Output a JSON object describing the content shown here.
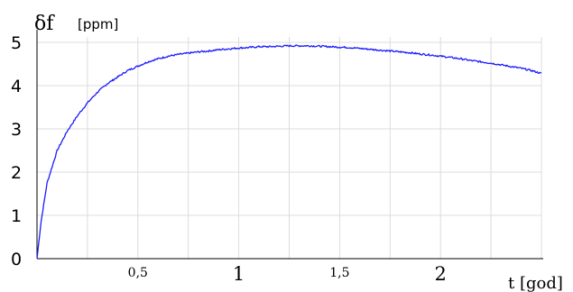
{
  "chart_data": {
    "type": "line",
    "ylabel": "δf",
    "ylabel_unit": "[ppm]",
    "xlabel": "t [god]",
    "xlim": [
      0,
      2.5
    ],
    "ylim": [
      0,
      5
    ],
    "grid": true,
    "colors": {
      "line": "#1a1aff",
      "grid": "#dcdcdc",
      "axis": "#000000"
    },
    "y_ticks": [
      {
        "value": 0,
        "label": "0"
      },
      {
        "value": 1,
        "label": "1"
      },
      {
        "value": 2,
        "label": "2"
      },
      {
        "value": 3,
        "label": "3"
      },
      {
        "value": 4,
        "label": "4"
      },
      {
        "value": 5,
        "label": "5"
      }
    ],
    "x_ticks": [
      {
        "value": 0.5,
        "label": "0,5",
        "style": "minor"
      },
      {
        "value": 1,
        "label": "1",
        "style": "major"
      },
      {
        "value": 1.5,
        "label": "1,5",
        "style": "minor"
      },
      {
        "value": 2,
        "label": "2",
        "style": "major"
      }
    ],
    "x_gridlines": [
      0.25,
      0.5,
      0.75,
      1,
      1.25,
      1.5,
      1.75,
      2,
      2.25,
      2.5
    ],
    "y_gridlines": [
      1,
      2,
      3,
      4,
      5
    ],
    "series": [
      {
        "x": [
          0,
          0.02,
          0.05,
          0.08,
          0.1,
          0.15,
          0.2,
          0.25,
          0.3,
          0.35,
          0.4,
          0.45,
          0.5,
          0.55,
          0.6,
          0.65,
          0.7,
          0.75,
          0.8,
          0.85,
          0.9,
          0.95,
          1.0,
          1.05,
          1.1,
          1.15,
          1.2,
          1.25,
          1.3,
          1.35,
          1.4,
          1.45,
          1.5,
          1.55,
          1.6,
          1.65,
          1.7,
          1.75,
          1.8,
          1.85,
          1.9,
          1.95,
          2.0,
          2.05,
          2.1,
          2.15,
          2.2,
          2.25,
          2.3,
          2.35,
          2.4,
          2.45,
          2.5
        ],
        "y": [
          0,
          0.85,
          1.75,
          2.2,
          2.5,
          2.95,
          3.3,
          3.6,
          3.85,
          4.05,
          4.2,
          4.35,
          4.45,
          4.55,
          4.62,
          4.68,
          4.72,
          4.75,
          4.78,
          4.8,
          4.83,
          4.85,
          4.87,
          4.88,
          4.9,
          4.9,
          4.91,
          4.92,
          4.92,
          4.92,
          4.91,
          4.9,
          4.89,
          4.88,
          4.86,
          4.84,
          4.82,
          4.8,
          4.78,
          4.76,
          4.73,
          4.71,
          4.68,
          4.65,
          4.62,
          4.58,
          4.55,
          4.52,
          4.48,
          4.44,
          4.4,
          4.35,
          4.28
        ]
      }
    ]
  }
}
